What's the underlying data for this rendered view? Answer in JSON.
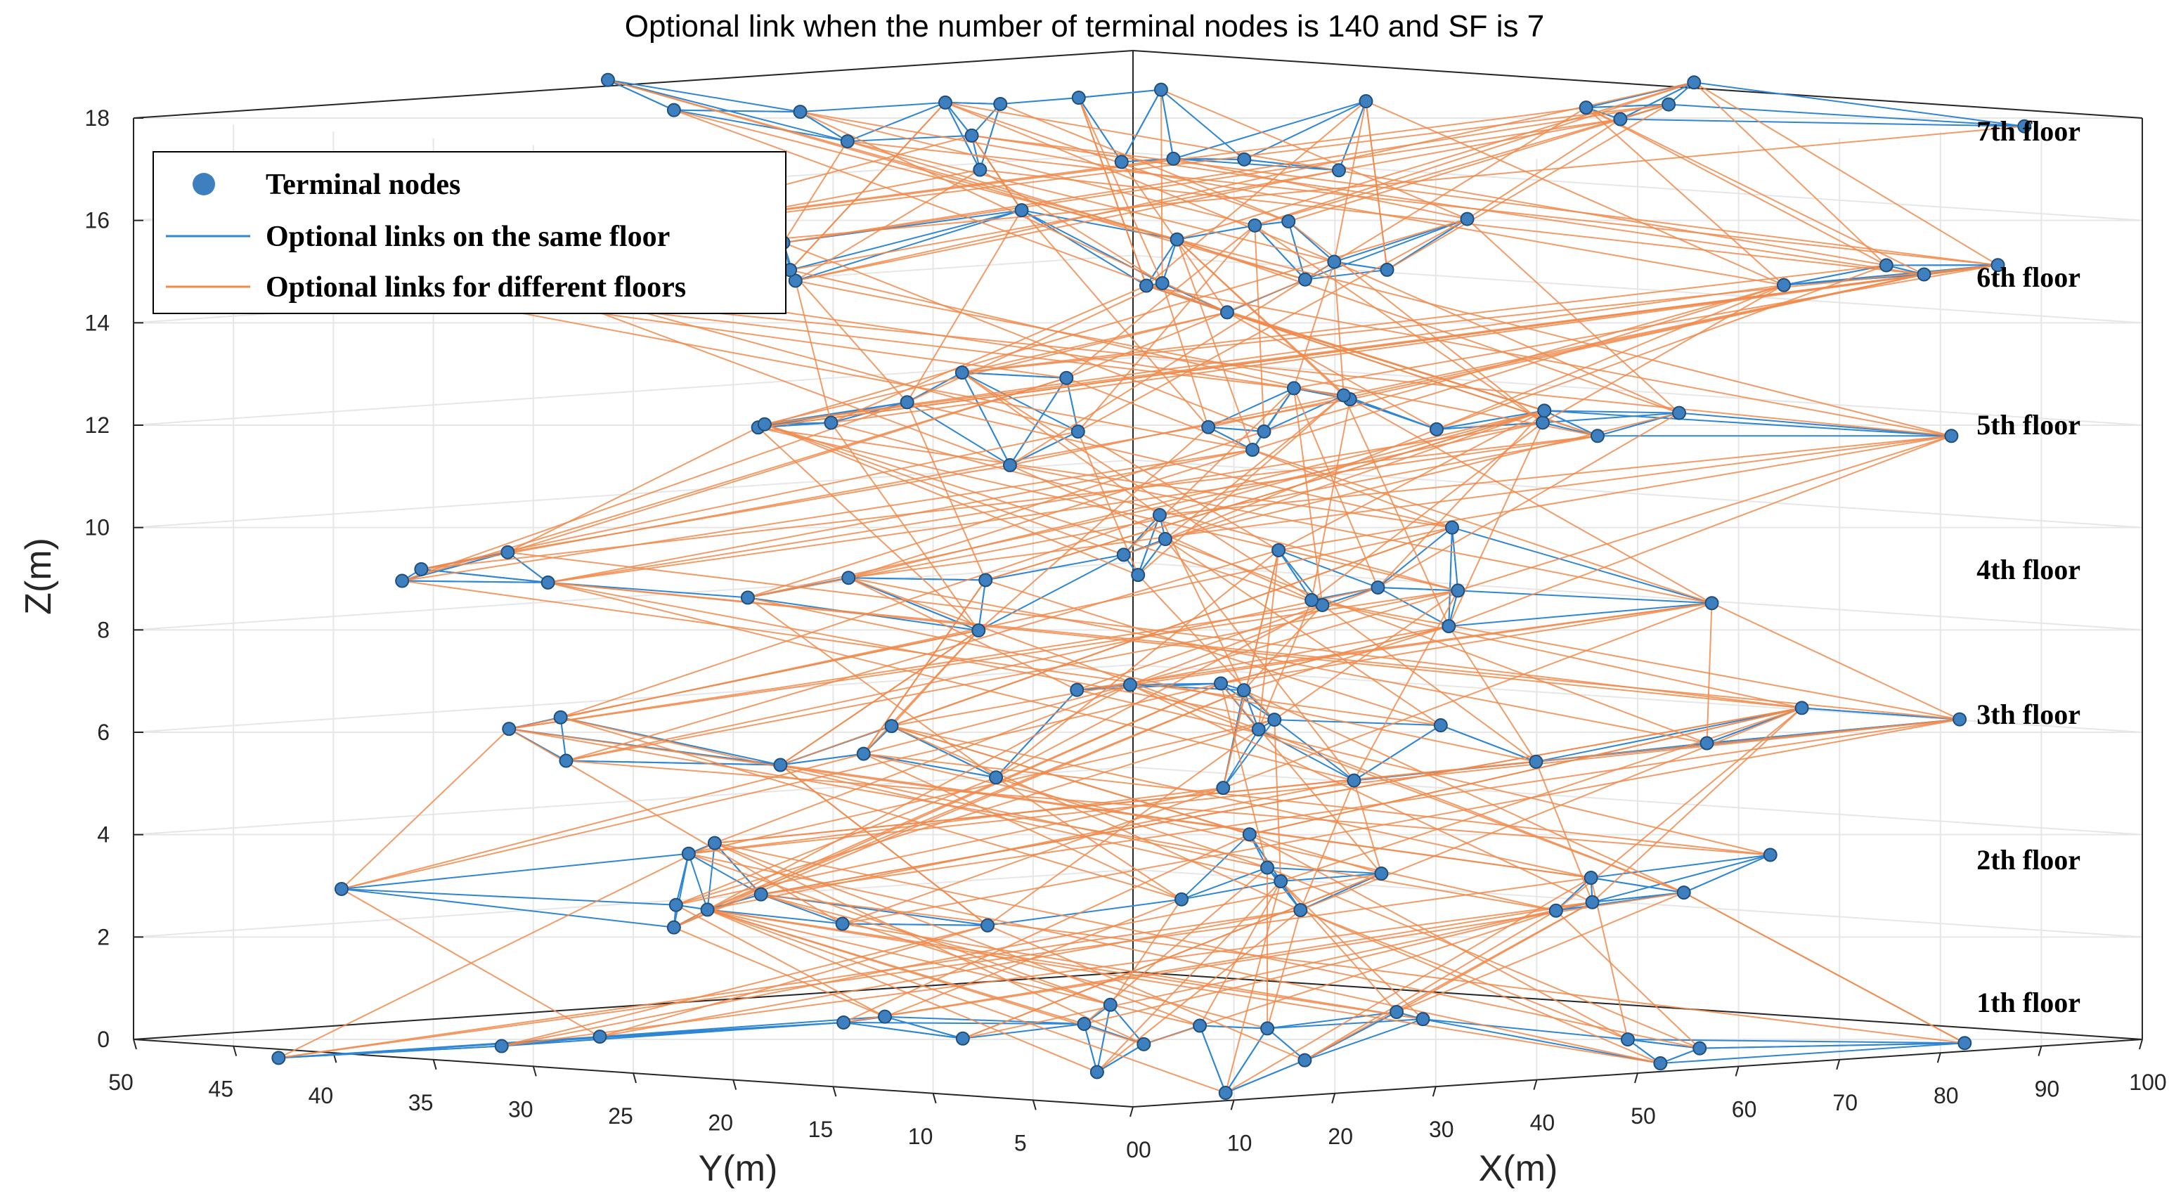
{
  "chart_data": {
    "type": "scatter3d-network",
    "title": "Optional link when the number of terminal nodes is 140 and SF is 7",
    "xlabel": "X(m)",
    "ylabel": "Y(m)",
    "zlabel": "Z(m)",
    "xlim": [
      0,
      100
    ],
    "ylim": [
      0,
      50
    ],
    "zlim": [
      0,
      18
    ],
    "x_ticks": [
      "00",
      "10",
      "20",
      "30",
      "40",
      "50",
      "60",
      "70",
      "80",
      "90",
      "100"
    ],
    "y_ticks": [
      "50",
      "45",
      "40",
      "35",
      "30",
      "25",
      "20",
      "15",
      "10",
      "5"
    ],
    "z_ticks": [
      "0",
      "2",
      "4",
      "6",
      "8",
      "10",
      "12",
      "14",
      "16",
      "18"
    ],
    "grid": true,
    "legend_position": "top-left",
    "legend": [
      {
        "label": "Terminal nodes",
        "kind": "marker",
        "color": "#3d7fbf"
      },
      {
        "label": "Optional links on the same floor",
        "kind": "line",
        "color": "#2f86d2"
      },
      {
        "label": "Optional links for different floors",
        "kind": "line",
        "color": "#f08a4b"
      }
    ],
    "floors": [
      {
        "label": "1th floor",
        "z": 0
      },
      {
        "label": "2th floor",
        "z": 3
      },
      {
        "label": "3th floor",
        "z": 6
      },
      {
        "label": "4th floor",
        "z": 9
      },
      {
        "label": "5th floor",
        "z": 12
      },
      {
        "label": "6th floor",
        "z": 15
      },
      {
        "label": "7th floor",
        "z": 18
      }
    ],
    "total_terminal_nodes": 140,
    "spreading_factor": 7,
    "series": [
      {
        "name": "Terminal nodes",
        "floor_node_counts": [
          20,
          20,
          20,
          20,
          20,
          20,
          20
        ]
      }
    ]
  },
  "colors": {
    "node": "#3d7fbf",
    "same_floor_link": "#2f86d2",
    "cross_floor_link": "#f08a4b",
    "axis": "#262626",
    "grid": "#e6e6e6"
  }
}
